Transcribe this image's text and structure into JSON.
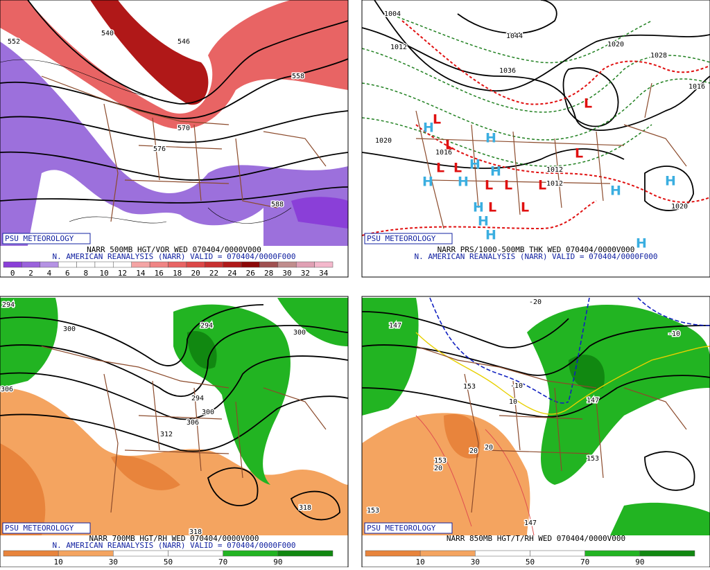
{
  "panels": [
    {
      "branding": "PSU METEOROLOGY",
      "title": "NARR 500MB HGT/VOR WED 070404/0000V000",
      "subtitle": "N. AMERICAN REANALYSIS (NARR) VALID = 070404/0000F000",
      "colorbar": {
        "labels": [
          0,
          2,
          4,
          6,
          8,
          10,
          12,
          14,
          16,
          18,
          20,
          22,
          24,
          26,
          28,
          30,
          32,
          34
        ],
        "colors": [
          "#8a3fd8",
          "#9a62dc",
          "#b592e4",
          "#ffffff",
          "#ffffff",
          "#ffffff",
          "#ffffff",
          "#f4a4a4",
          "#f08484",
          "#e86464",
          "#dc4848",
          "#c83030",
          "#b01818",
          "#8c0808",
          "#a05050",
          "#c08c8c",
          "#e0a0b4",
          "#f4b8cc"
        ]
      },
      "contour_labels": [
        "552",
        "540",
        "546",
        "558",
        "576",
        "570",
        "588"
      ]
    },
    {
      "branding": "PSU METEOROLOGY",
      "title": "NARR PRS/1000-500MB THK WED 070404/0000V000",
      "subtitle": "N. AMERICAN REANALYSIS (NARR) VALID = 070404/0000F000",
      "contour_labels": [
        "1004",
        "1012",
        "1044",
        "1036",
        "1020",
        "1028",
        "1020",
        "1012",
        "1012",
        "1016",
        "1020",
        "1016"
      ],
      "centers": [
        "H",
        "H",
        "H",
        "H",
        "H",
        "H",
        "H",
        "H",
        "H",
        "H",
        "H",
        "H",
        "L",
        "L",
        "L",
        "L",
        "L",
        "L",
        "L",
        "L",
        "L",
        "L",
        "L"
      ]
    },
    {
      "branding": "PSU METEOROLOGY",
      "title": "NARR 700MB HGT/RH WED 070404/0000V000",
      "subtitle": "N. AMERICAN REANALYSIS (NARR) VALID = 070404/0000F000",
      "colorbar": {
        "labels": [
          10,
          30,
          50,
          70,
          90
        ],
        "colors": [
          "#e8843c",
          "#f4a460",
          "#ffffff",
          "#ffffff",
          "#22b422",
          "#118811"
        ]
      },
      "contour_labels": [
        "294",
        "300",
        "306",
        "294",
        "300",
        "294",
        "300",
        "306",
        "312",
        "318",
        "318"
      ]
    },
    {
      "branding": "PSU METEOROLOGY",
      "title": "NARR 850MB HGT/T/RH WED 070404/0000V000",
      "colorbar": {
        "labels": [
          10,
          30,
          50,
          70,
          90
        ],
        "colors": [
          "#e8843c",
          "#f4a460",
          "#ffffff",
          "#ffffff",
          "#22b422",
          "#118811"
        ]
      },
      "contour_labels": [
        "-20",
        "147",
        "153",
        "-10",
        "10",
        "20",
        "20",
        "20",
        "153",
        "153",
        "147",
        "153",
        "-10",
        "147"
      ]
    }
  ]
}
